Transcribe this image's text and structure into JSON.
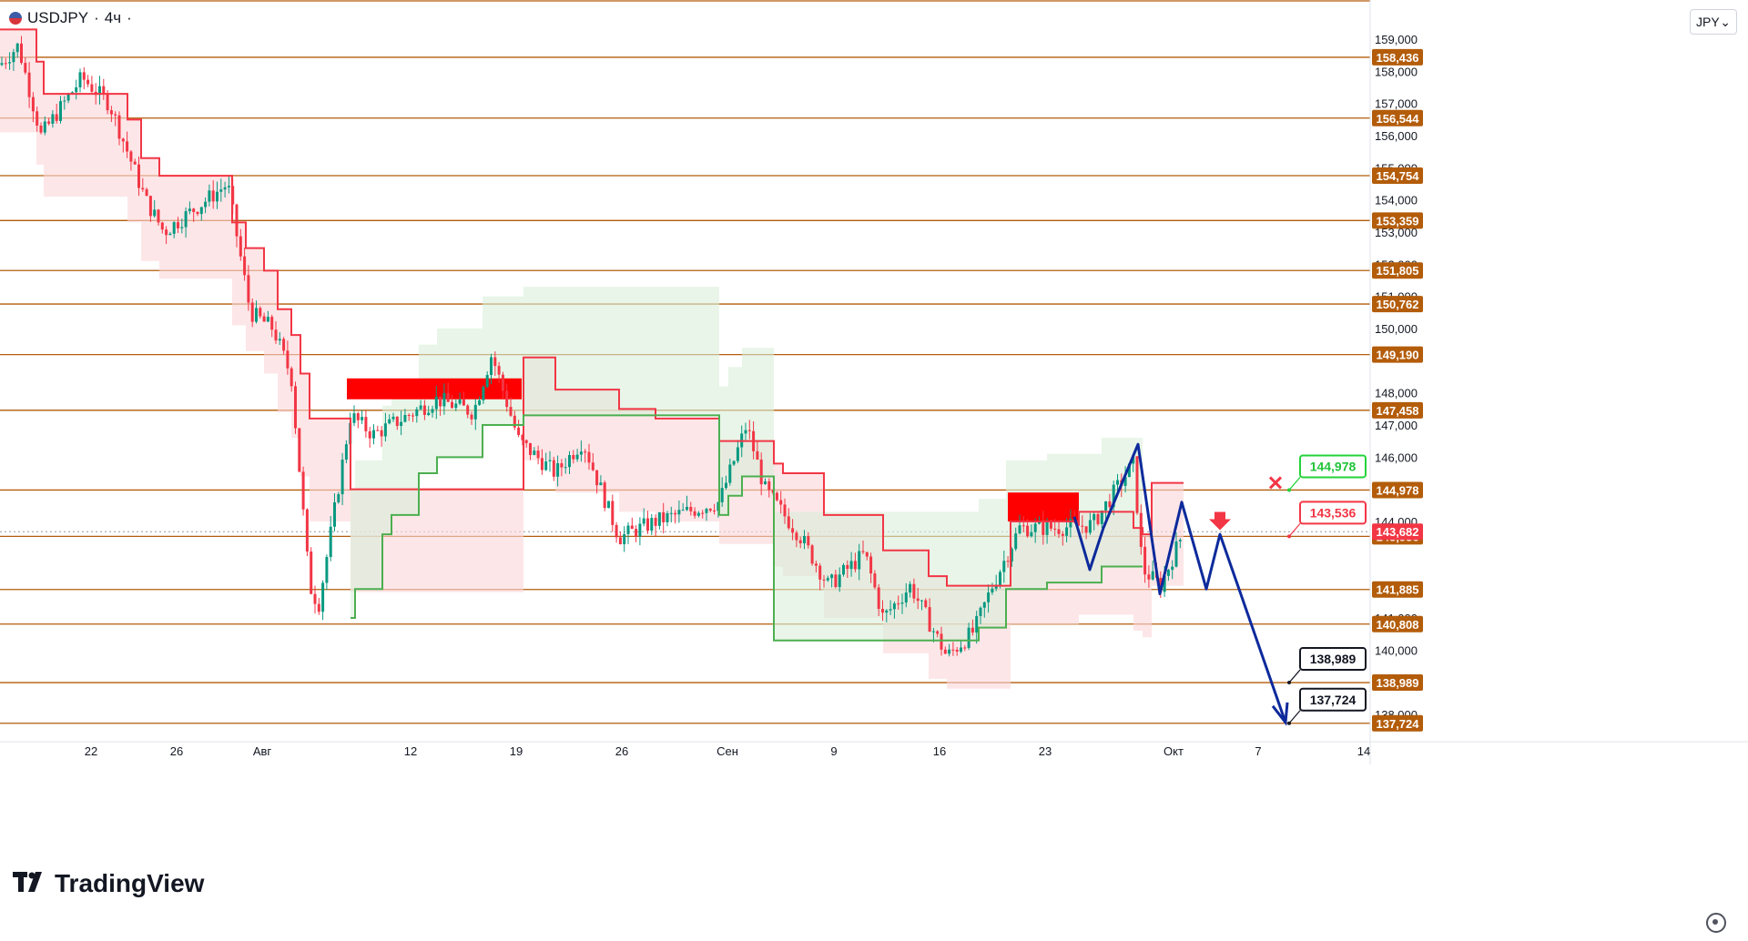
{
  "header": {
    "symbol": "USDJPY",
    "separator": "·",
    "interval": "4ч",
    "flag_icon": "us-japan-flag-icon"
  },
  "currency_select": {
    "value": "JPY",
    "icon": "chevron-down-icon"
  },
  "logo": {
    "mark": "TV",
    "text": "TradingView"
  },
  "settings_icon": "gear-icon",
  "colors": {
    "up": "#089981",
    "down": "#f23645",
    "level_line": "#b35c0a",
    "level_label_bg": "#b35c0a",
    "resistance_line": "#f23645",
    "resistance_fill": "#fcd5d8",
    "support_line": "#4caf50",
    "support_fill": "#d9efd9",
    "zone": "#ff0000",
    "projection": "#0d2a9c",
    "green_label_border": "#22d33a",
    "red_label_border": "#f23645"
  },
  "chart_data": {
    "type": "candlestick",
    "symbol": "USDJPY",
    "interval": "4h",
    "ylim": [
      137.45,
      160.1
    ],
    "x_axis": {
      "tick_labels": [
        "22",
        "26",
        "Авг",
        "12",
        "19",
        "26",
        "Сен",
        "9",
        "16",
        "23",
        "Окт",
        "7",
        "14"
      ]
    },
    "y_axis": {
      "tick_labels": [
        "159,000",
        "158,000",
        "157,000",
        "156,000",
        "155,000",
        "154,000",
        "153,000",
        "152,000",
        "151,000",
        "150,000",
        "148,000",
        "147,000",
        "146,000",
        "144,000",
        "142,000",
        "141,000",
        "140,000",
        "138,000"
      ],
      "tick_values": [
        159,
        158,
        157,
        156,
        155,
        154,
        153,
        152,
        151,
        150,
        148,
        147,
        146,
        144,
        142,
        141,
        140,
        138
      ]
    },
    "horizontal_levels": [
      {
        "value": 158.436,
        "label": "158,436"
      },
      {
        "value": 156.544,
        "label": "156,544"
      },
      {
        "value": 154.754,
        "label": "154,754"
      },
      {
        "value": 153.359,
        "label": "153,359"
      },
      {
        "value": 151.805,
        "label": "151,805"
      },
      {
        "value": 150.762,
        "label": "150,762"
      },
      {
        "value": 149.19,
        "label": "149,190"
      },
      {
        "value": 147.458,
        "label": "147,458"
      },
      {
        "value": 144.978,
        "label": "144,978"
      },
      {
        "value": 143.536,
        "label": "143,536"
      },
      {
        "value": 141.885,
        "label": "141,885"
      },
      {
        "value": 140.808,
        "label": "140,808"
      },
      {
        "value": 138.989,
        "label": "138,989"
      },
      {
        "value": 137.724,
        "label": "137,724"
      }
    ],
    "current_price": {
      "value": 143.682,
      "label": "143,682"
    },
    "callouts": [
      {
        "label": "144,978",
        "value": 144.978,
        "style": "green"
      },
      {
        "label": "143,536",
        "value": 143.536,
        "style": "red"
      },
      {
        "label": "138,989",
        "value": 138.989,
        "style": "black"
      },
      {
        "label": "137,724",
        "value": 137.724,
        "style": "black"
      }
    ],
    "markers": [
      {
        "type": "cross",
        "value": 144.978,
        "color": "#f23645"
      },
      {
        "type": "arrow-down",
        "value": 143.9,
        "color": "#f23645"
      }
    ],
    "zones": [
      {
        "name": "august-resistance-zone",
        "from_price": 147.8,
        "to_price": 148.45
      },
      {
        "name": "september-resistance-zone",
        "from_price": 144.0,
        "to_price": 144.9
      }
    ],
    "projection_path_prices": [
      144.15,
      142.5,
      143.8,
      146.4,
      141.75,
      144.6,
      141.9,
      143.6,
      137.75
    ],
    "resistance_line_prices": [
      159.3,
      158.3,
      157.3,
      156.5,
      155.3,
      154.75,
      153.3,
      152.5,
      151.8,
      150.6,
      149.8,
      148.6,
      147.2,
      145.0,
      149.1,
      148.1,
      147.5,
      147.2,
      146.5,
      145.8,
      145.5,
      144.2,
      143.1,
      142.3,
      142.0,
      144.0,
      144.3,
      143.8,
      143.6,
      145.2
    ],
    "support_line_prices": [
      141.0,
      141.9,
      143.6,
      144.2,
      145.5,
      146.0,
      147.0,
      147.3,
      144.2,
      144.8,
      145.4,
      140.3,
      140.7,
      141.9,
      142.1,
      142.6
    ]
  }
}
